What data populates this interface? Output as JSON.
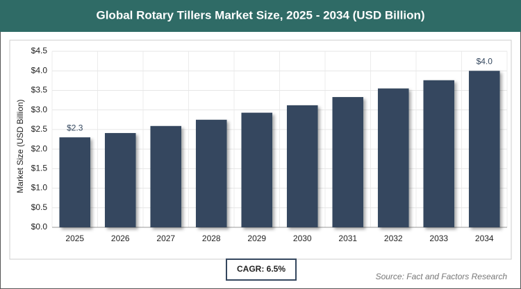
{
  "chart_data": {
    "type": "bar",
    "title": "Global Rotary Tillers Market Size, 2025 - 2034 (USD Billion)",
    "y_label": "Market Size (USD Billion)",
    "categories": [
      "2025",
      "2026",
      "2027",
      "2028",
      "2029",
      "2030",
      "2031",
      "2032",
      "2033",
      "2034"
    ],
    "values": [
      2.3,
      2.41,
      2.59,
      2.75,
      2.93,
      3.12,
      3.33,
      3.55,
      3.76,
      4.0
    ],
    "value_labels": [
      "$2.3",
      null,
      null,
      null,
      null,
      null,
      null,
      null,
      null,
      "$4.0"
    ],
    "color": "#34475e",
    "ylim": [
      0,
      4.5
    ],
    "yticks": [
      {
        "value": 0,
        "label": "$0.0"
      },
      {
        "value": 0.5,
        "label": "$0.5"
      },
      {
        "value": 1,
        "label": "$1.0"
      },
      {
        "value": 1.5,
        "label": "$1.5"
      },
      {
        "value": 2,
        "label": "$2.0"
      },
      {
        "value": 2.5,
        "label": "$2.5"
      },
      {
        "value": 3,
        "label": "$3.0"
      },
      {
        "value": 3.5,
        "label": "$3.5"
      },
      {
        "value": 4,
        "label": "$4.0"
      },
      {
        "value": 4.5,
        "label": "$4.5"
      }
    ],
    "grid": true,
    "cagr": "CAGR: 6.5%",
    "source": "Source: Fact and Factors Research"
  }
}
